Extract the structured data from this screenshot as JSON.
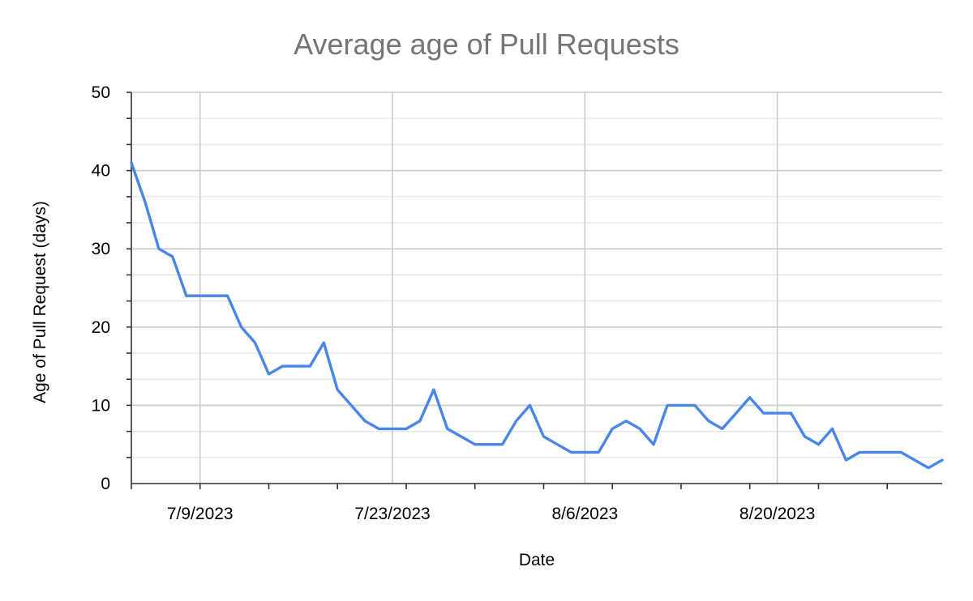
{
  "chart_data": {
    "type": "line",
    "title": "Average age of Pull Requests",
    "xlabel": "Date",
    "ylabel": "Age of Pull Request (days)",
    "ylim": [
      0,
      50
    ],
    "yticks": [
      0,
      10,
      20,
      30,
      40,
      50
    ],
    "xlim": [
      "2023-07-04",
      "2023-09-01"
    ],
    "xtick_labels": [
      {
        "date": "2023-07-09",
        "label": "7/9/2023"
      },
      {
        "date": "2023-07-23",
        "label": "7/23/2023"
      },
      {
        "date": "2023-08-06",
        "label": "8/6/2023"
      },
      {
        "date": "2023-08-20",
        "label": "8/20/2023"
      }
    ],
    "grid": true,
    "line_color": "#4a86e8",
    "series": [
      {
        "x": [
          "2023-07-04",
          "2023-07-05",
          "2023-07-06",
          "2023-07-07",
          "2023-07-08",
          "2023-07-09",
          "2023-07-10",
          "2023-07-11",
          "2023-07-12",
          "2023-07-13",
          "2023-07-14",
          "2023-07-15",
          "2023-07-16",
          "2023-07-17",
          "2023-07-18",
          "2023-07-19",
          "2023-07-20",
          "2023-07-21",
          "2023-07-22",
          "2023-07-23",
          "2023-07-24",
          "2023-07-25",
          "2023-07-26",
          "2023-07-27",
          "2023-07-28",
          "2023-07-29",
          "2023-07-30",
          "2023-07-31",
          "2023-08-01",
          "2023-08-02",
          "2023-08-03",
          "2023-08-04",
          "2023-08-05",
          "2023-08-06",
          "2023-08-07",
          "2023-08-08",
          "2023-08-09",
          "2023-08-10",
          "2023-08-11",
          "2023-08-12",
          "2023-08-13",
          "2023-08-14",
          "2023-08-15",
          "2023-08-16",
          "2023-08-17",
          "2023-08-18",
          "2023-08-19",
          "2023-08-20",
          "2023-08-21",
          "2023-08-22",
          "2023-08-23",
          "2023-08-24",
          "2023-08-25",
          "2023-08-26",
          "2023-08-27",
          "2023-08-28",
          "2023-08-29",
          "2023-08-30",
          "2023-08-31",
          "2023-09-01"
        ],
        "values": [
          41,
          36,
          30,
          29,
          24,
          24,
          24,
          24,
          20,
          18,
          14,
          15,
          15,
          15,
          18,
          12,
          10,
          8,
          7,
          7,
          7,
          8,
          12,
          7,
          6,
          5,
          5,
          5,
          8,
          10,
          6,
          5,
          4,
          4,
          4,
          7,
          8,
          7,
          5,
          10,
          10,
          10,
          8,
          7,
          9,
          11,
          9,
          9,
          9,
          6,
          5,
          7,
          3,
          4,
          4,
          4,
          4,
          3,
          2,
          3
        ]
      }
    ]
  }
}
